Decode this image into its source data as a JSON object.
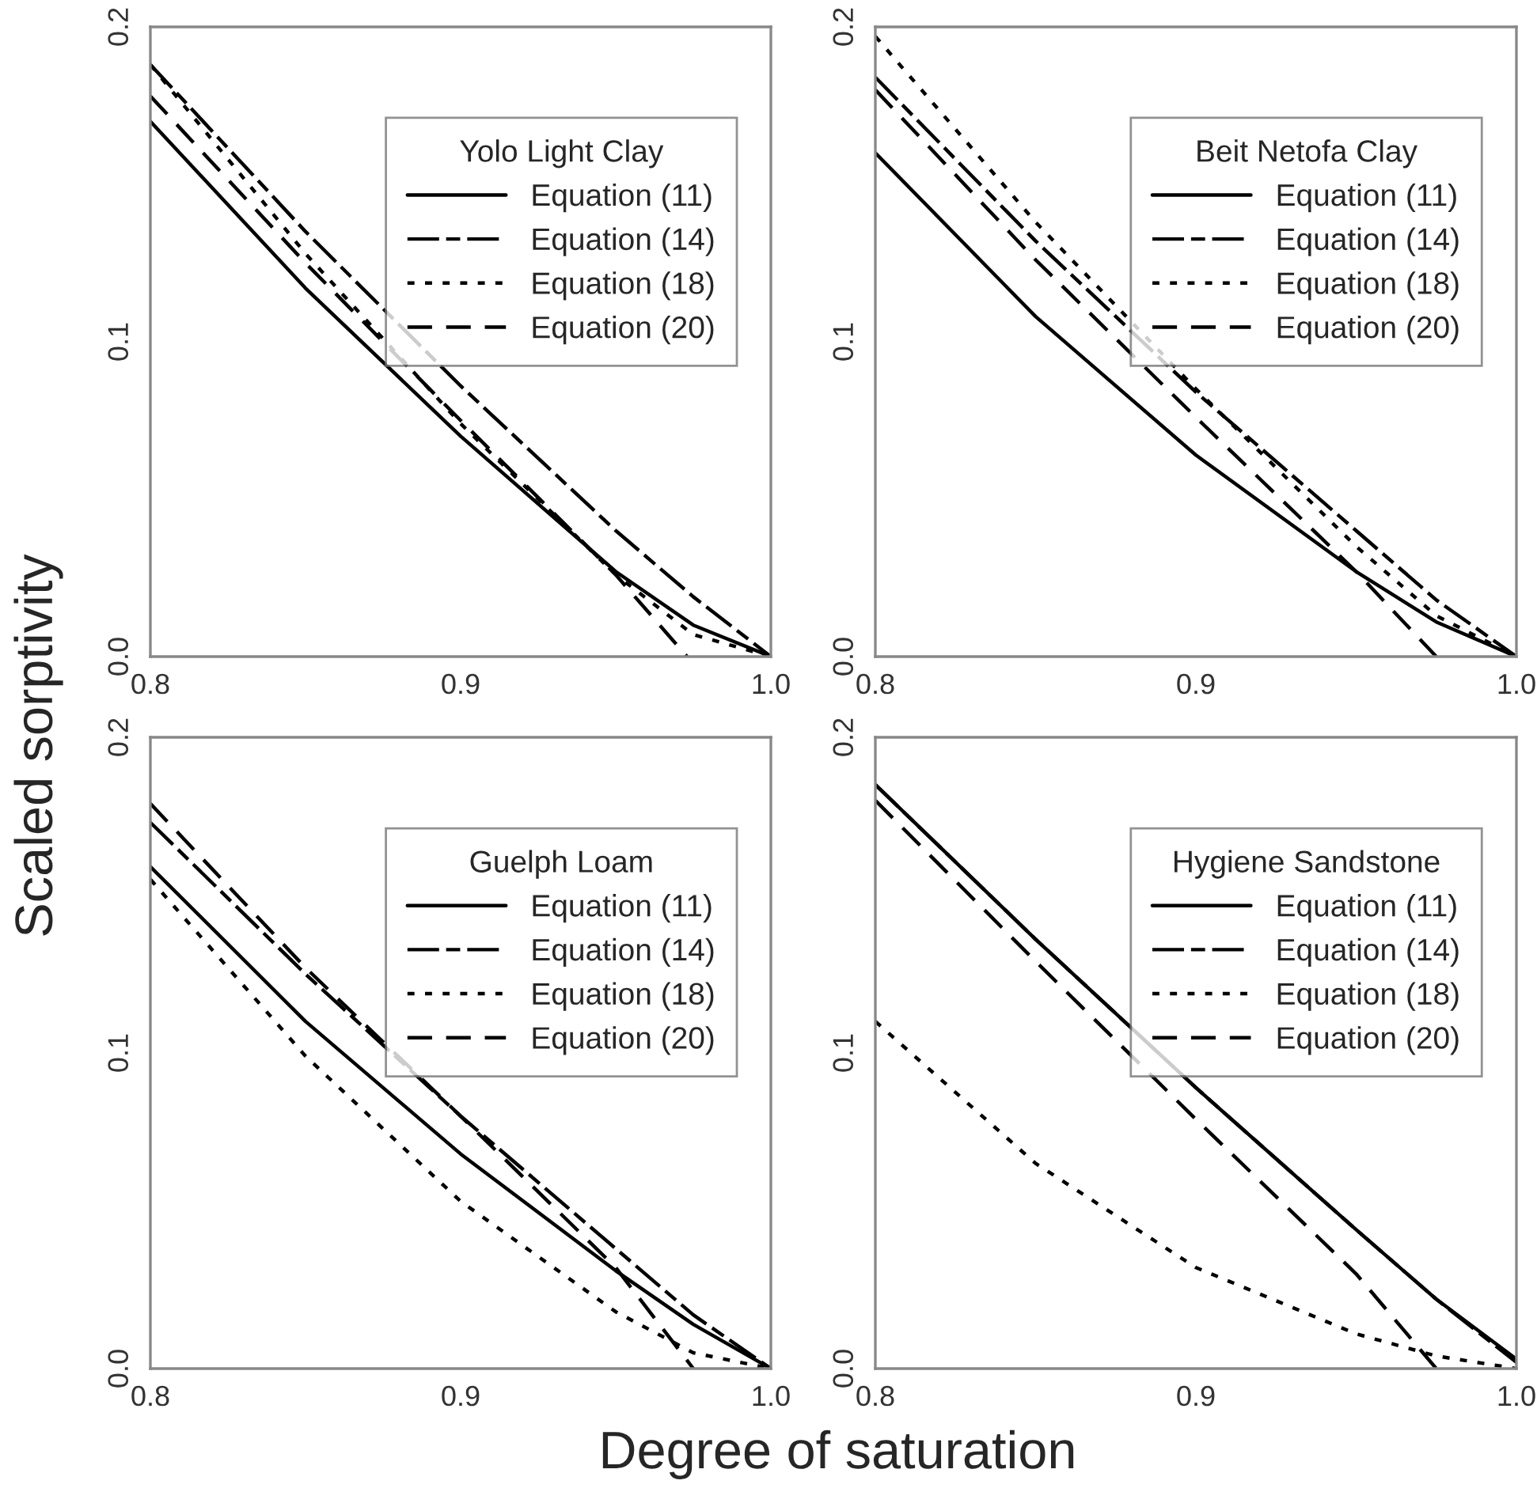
{
  "chart_data": [
    {
      "type": "line",
      "legend_title": "Yolo Light Clay",
      "ylabel": "Scaled sorptivity",
      "xlim": [
        0.8,
        1.0
      ],
      "ylim": [
        0.0,
        0.2
      ],
      "xticks": [
        {
          "value": 0.8,
          "label": "0.8"
        },
        {
          "value": 0.9,
          "label": "0.9"
        },
        {
          "value": 1.0,
          "label": "1.0"
        }
      ],
      "yticks": [
        {
          "value": 0.0,
          "label": "0.0"
        },
        {
          "value": 0.1,
          "label": "0.1"
        },
        {
          "value": 0.2,
          "label": "0.2"
        }
      ],
      "legend": "top right",
      "grid": false,
      "series": [
        {
          "name": "Equation (11)",
          "color": "#000000",
          "line_style": "solid",
          "x": [
            0.8,
            0.85,
            0.9,
            0.95,
            0.975,
            1.0
          ],
          "values": [
            0.17,
            0.117,
            0.07,
            0.027,
            0.01,
            0.0
          ]
        },
        {
          "name": "Equation (14)",
          "color": "#000000",
          "line_style": "dashdot",
          "x": [
            0.8,
            0.85,
            0.9,
            0.95,
            0.975,
            1.0
          ],
          "values": [
            0.188,
            0.135,
            0.086,
            0.04,
            0.019,
            0.0
          ]
        },
        {
          "name": "Equation (18)",
          "color": "#000000",
          "line_style": "dotted",
          "x": [
            0.8,
            0.85,
            0.9,
            0.95,
            0.975,
            1.0
          ],
          "values": [
            0.188,
            0.128,
            0.074,
            0.026,
            0.007,
            0.0
          ]
        },
        {
          "name": "Equation (20)",
          "color": "#000000",
          "line_style": "dashed",
          "x": [
            0.8,
            0.85,
            0.9,
            0.95,
            0.973
          ],
          "values": [
            0.178,
            0.125,
            0.075,
            0.026,
            0.0
          ]
        }
      ]
    },
    {
      "type": "line",
      "legend_title": "Beit Netofa Clay",
      "xlim": [
        0.8,
        1.0
      ],
      "ylim": [
        0.0,
        0.2
      ],
      "xticks": [
        {
          "value": 0.8,
          "label": "0.8"
        },
        {
          "value": 0.9,
          "label": "0.9"
        },
        {
          "value": 1.0,
          "label": "1.0"
        }
      ],
      "yticks": [
        {
          "value": 0.0,
          "label": "0.0"
        },
        {
          "value": 0.1,
          "label": "0.1"
        },
        {
          "value": 0.2,
          "label": "0.2"
        }
      ],
      "legend": "top right",
      "grid": false,
      "series": [
        {
          "name": "Equation (11)",
          "color": "#000000",
          "line_style": "solid",
          "x": [
            0.8,
            0.85,
            0.9,
            0.95,
            0.975,
            1.0
          ],
          "values": [
            0.16,
            0.108,
            0.064,
            0.027,
            0.011,
            0.0
          ]
        },
        {
          "name": "Equation (14)",
          "color": "#000000",
          "line_style": "dashdot",
          "x": [
            0.8,
            0.85,
            0.9,
            0.95,
            0.975,
            1.0
          ],
          "values": [
            0.184,
            0.132,
            0.084,
            0.04,
            0.018,
            0.0
          ]
        },
        {
          "name": "Equation (18)",
          "color": "#000000",
          "line_style": "dotted",
          "x": [
            0.8,
            0.85,
            0.9,
            0.95,
            0.975,
            1.0
          ],
          "values": [
            0.197,
            0.138,
            0.085,
            0.035,
            0.013,
            0.0
          ]
        },
        {
          "name": "Equation (20)",
          "color": "#000000",
          "line_style": "dashed",
          "x": [
            0.8,
            0.85,
            0.9,
            0.95,
            0.975
          ],
          "values": [
            0.18,
            0.126,
            0.076,
            0.027,
            0.0
          ]
        }
      ]
    },
    {
      "type": "line",
      "legend_title": "Guelph Loam",
      "xlabel": "Degree of saturation",
      "xlim": [
        0.8,
        1.0
      ],
      "ylim": [
        0.0,
        0.2
      ],
      "xticks": [
        {
          "value": 0.8,
          "label": "0.8"
        },
        {
          "value": 0.9,
          "label": "0.9"
        },
        {
          "value": 1.0,
          "label": "1.0"
        }
      ],
      "yticks": [
        {
          "value": 0.0,
          "label": "0.0"
        },
        {
          "value": 0.1,
          "label": "0.1"
        },
        {
          "value": 0.2,
          "label": "0.2"
        }
      ],
      "legend": "top right",
      "grid": false,
      "series": [
        {
          "name": "Equation (11)",
          "color": "#000000",
          "line_style": "solid",
          "x": [
            0.8,
            0.85,
            0.9,
            0.95,
            0.975,
            1.0
          ],
          "values": [
            0.159,
            0.11,
            0.068,
            0.031,
            0.014,
            0.0
          ]
        },
        {
          "name": "Equation (14)",
          "color": "#000000",
          "line_style": "dashdot",
          "x": [
            0.8,
            0.85,
            0.9,
            0.95,
            0.975,
            1.0
          ],
          "values": [
            0.173,
            0.125,
            0.08,
            0.038,
            0.017,
            0.0
          ]
        },
        {
          "name": "Equation (18)",
          "color": "#000000",
          "line_style": "dotted",
          "x": [
            0.8,
            0.85,
            0.9,
            0.95,
            0.975,
            1.0
          ],
          "values": [
            0.155,
            0.099,
            0.053,
            0.018,
            0.005,
            0.0
          ]
        },
        {
          "name": "Equation (20)",
          "color": "#000000",
          "line_style": "dashed",
          "x": [
            0.8,
            0.85,
            0.9,
            0.95,
            0.975
          ],
          "values": [
            0.179,
            0.127,
            0.08,
            0.032,
            0.0
          ]
        }
      ]
    },
    {
      "type": "line",
      "legend_title": "Hygiene Sandstone",
      "xlim": [
        0.8,
        1.0
      ],
      "ylim": [
        0.0,
        0.2
      ],
      "xticks": [
        {
          "value": 0.8,
          "label": "0.8"
        },
        {
          "value": 0.9,
          "label": "0.9"
        },
        {
          "value": 1.0,
          "label": "1.0"
        }
      ],
      "yticks": [
        {
          "value": 0.0,
          "label": "0.0"
        },
        {
          "value": 0.1,
          "label": "0.1"
        },
        {
          "value": 0.2,
          "label": "0.2"
        }
      ],
      "legend": "top right",
      "grid": false,
      "series": [
        {
          "name": "Equation (11)",
          "color": "#000000",
          "line_style": "solid",
          "x": [
            0.8,
            0.85,
            0.9,
            0.95,
            0.975,
            1.0
          ],
          "values": [
            0.185,
            0.136,
            0.089,
            0.044,
            0.022,
            0.003
          ]
        },
        {
          "name": "Equation (14)",
          "color": "#000000",
          "line_style": "dashdot",
          "x": [
            0.8,
            0.85,
            0.9,
            0.95,
            0.975,
            1.0
          ],
          "values": [
            0.185,
            0.136,
            0.089,
            0.044,
            0.022,
            0.002
          ]
        },
        {
          "name": "Equation (18)",
          "color": "#000000",
          "line_style": "dotted",
          "x": [
            0.8,
            0.85,
            0.9,
            0.95,
            0.975,
            1.0
          ],
          "values": [
            0.11,
            0.065,
            0.032,
            0.011,
            0.004,
            0.0
          ]
        },
        {
          "name": "Equation (20)",
          "color": "#000000",
          "line_style": "dashed",
          "x": [
            0.8,
            0.85,
            0.9,
            0.95,
            0.975
          ],
          "values": [
            0.18,
            0.129,
            0.079,
            0.03,
            0.0
          ]
        }
      ]
    }
  ]
}
